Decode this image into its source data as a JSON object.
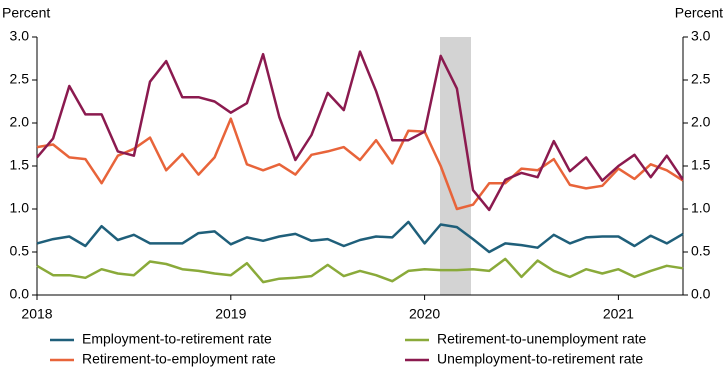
{
  "chart_data": {
    "type": "line",
    "y_label": "Percent",
    "y2_label": "Percent",
    "categories": [
      "2018",
      null,
      null,
      null,
      null,
      null,
      null,
      null,
      null,
      null,
      null,
      null,
      "2019",
      null,
      null,
      null,
      null,
      null,
      null,
      null,
      null,
      null,
      null,
      null,
      "2020",
      null,
      null,
      null,
      null,
      null,
      null,
      null,
      null,
      null,
      null,
      null,
      "2021",
      null,
      null,
      null,
      null
    ],
    "series": [
      {
        "name": "Employment-to-retirement rate",
        "color": "#1f5f7a",
        "values": [
          0.6,
          0.65,
          0.68,
          0.57,
          0.8,
          0.64,
          0.7,
          0.6,
          0.6,
          0.6,
          0.72,
          0.74,
          0.59,
          0.67,
          0.63,
          0.68,
          0.71,
          0.63,
          0.65,
          0.57,
          0.64,
          0.68,
          0.67,
          0.85,
          0.6,
          0.82,
          0.79,
          0.65,
          0.5,
          0.6,
          0.58,
          0.55,
          0.7,
          0.6,
          0.67,
          0.68,
          0.68,
          0.57,
          0.69,
          0.6,
          0.71
        ]
      },
      {
        "name": "Retirement-to-unemployment rate",
        "color": "#8aaa3a",
        "values": [
          0.34,
          0.23,
          0.23,
          0.2,
          0.3,
          0.25,
          0.23,
          0.39,
          0.36,
          0.3,
          0.28,
          0.25,
          0.23,
          0.37,
          0.15,
          0.19,
          0.2,
          0.22,
          0.35,
          0.22,
          0.28,
          0.23,
          0.16,
          0.28,
          0.3,
          0.29,
          0.29,
          0.3,
          0.28,
          0.42,
          0.21,
          0.4,
          0.28,
          0.21,
          0.3,
          0.25,
          0.3,
          0.21,
          0.28,
          0.34,
          0.31
        ]
      },
      {
        "name": "Retirement-to-employment rate",
        "color": "#e8643a",
        "values": [
          1.72,
          1.75,
          1.6,
          1.58,
          1.3,
          1.62,
          1.7,
          1.83,
          1.45,
          1.64,
          1.4,
          1.6,
          2.05,
          1.52,
          1.45,
          1.52,
          1.4,
          1.63,
          1.67,
          1.72,
          1.57,
          1.8,
          1.53,
          1.91,
          1.9,
          1.5,
          1.0,
          1.05,
          1.3,
          1.3,
          1.47,
          1.45,
          1.58,
          1.28,
          1.24,
          1.27,
          1.47,
          1.35,
          1.52,
          1.45,
          1.33
        ]
      },
      {
        "name": "Unemployment-to-retirement rate",
        "color": "#8b1a4f",
        "values": [
          1.6,
          1.82,
          2.43,
          2.1,
          2.1,
          1.67,
          1.62,
          2.48,
          2.72,
          2.3,
          2.3,
          2.25,
          2.12,
          2.23,
          2.8,
          2.07,
          1.57,
          1.86,
          2.35,
          2.15,
          2.83,
          2.37,
          1.8,
          1.8,
          1.9,
          2.78,
          2.4,
          1.22,
          0.99,
          1.34,
          1.42,
          1.37,
          1.79,
          1.44,
          1.6,
          1.33,
          1.5,
          1.63,
          1.37,
          1.62,
          1.34
        ]
      }
    ],
    "ylim": [
      0,
      3
    ],
    "yticks": [
      {
        "value": 0,
        "label": "0.0"
      },
      {
        "value": 0.5,
        "label": "0.5"
      },
      {
        "value": 1,
        "label": "1.0"
      },
      {
        "value": 1.5,
        "label": "1.5"
      },
      {
        "value": 2,
        "label": "2.0"
      },
      {
        "value": 2.5,
        "label": "2.5"
      },
      {
        "value": 3,
        "label": "3.0"
      }
    ],
    "y2lim": [
      0,
      3
    ],
    "y2ticks": [
      {
        "value": 0,
        "label": "0.0"
      },
      {
        "value": 0.5,
        "label": "0.5"
      },
      {
        "value": 1,
        "label": "1.0"
      },
      {
        "value": 1.5,
        "label": "1.5"
      },
      {
        "value": 2,
        "label": "2.0"
      },
      {
        "value": 2.5,
        "label": "2.5"
      },
      {
        "value": 3,
        "label": "3.0"
      }
    ]
  }
}
